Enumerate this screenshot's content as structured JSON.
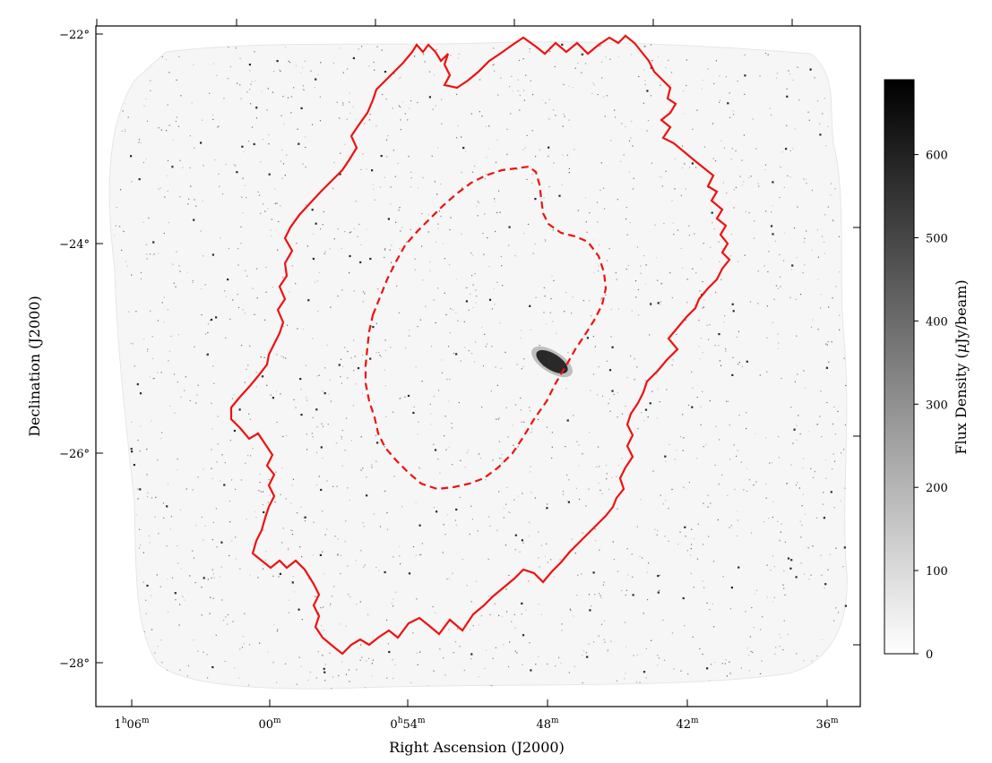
{
  "chart_data": {
    "type": "heatmap",
    "description_visible": "Grayscale radio continuum mosaic with red survey footprint outlines",
    "xlabel": "Right Ascension (J2000)",
    "ylabel": "Declination (J2000)",
    "x_ticks": [
      {
        "label": "1",
        "sup1": "h",
        "main2": "06",
        "sup2": "m",
        "value_min": 66
      },
      {
        "label": "00",
        "sup": "m",
        "value_min": 60
      },
      {
        "label": "0",
        "sup1": "h",
        "main2": "54",
        "sup2": "m",
        "value_min": 54
      },
      {
        "label": "48",
        "sup": "m",
        "value_min": 48
      },
      {
        "label": "42",
        "sup": "m",
        "value_min": 42
      },
      {
        "label": "36",
        "sup": "m",
        "value_min": 36
      }
    ],
    "y_ticks": [
      {
        "label": "−22°",
        "value": -22
      },
      {
        "label": "−24°",
        "value": -24
      },
      {
        "label": "−26°",
        "value": -26
      },
      {
        "label": "−28°",
        "value": -28
      }
    ],
    "colorbar": {
      "label_main": "Flux Density (",
      "label_mu": "μ",
      "label_rest": "Jy/beam)",
      "range": [
        0,
        690
      ],
      "ticks": [
        "0",
        "100",
        "200",
        "300",
        "400",
        "500",
        "600"
      ],
      "colormap": "gray_r"
    },
    "outer_footprint": {
      "color": "#ee1111",
      "style": "solid"
    },
    "inner_footprint": {
      "color": "#ee1111",
      "style": "dashed"
    },
    "bright_source": {
      "ra_min": 47.6,
      "dec": -25.3
    }
  }
}
